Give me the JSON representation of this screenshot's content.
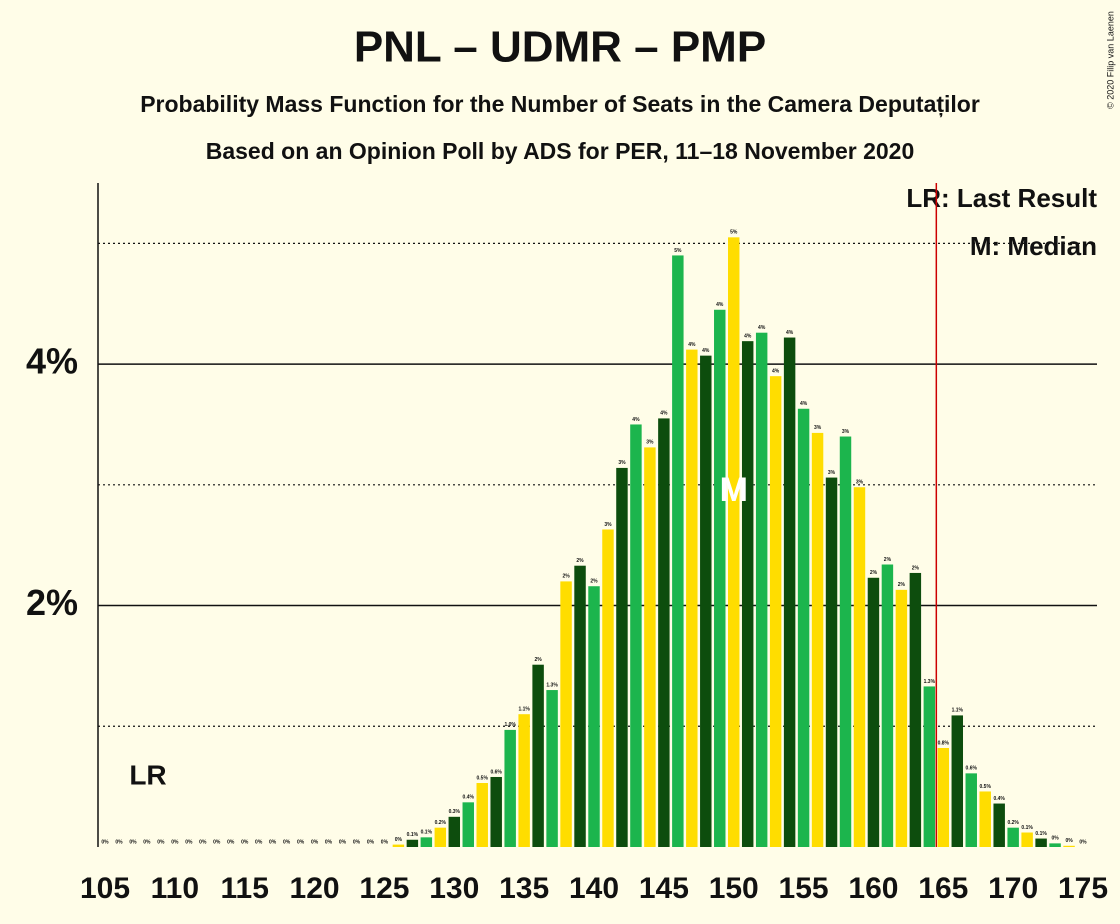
{
  "chart_data": {
    "type": "bar",
    "title": "PNL – UDMR – PMP",
    "subtitle": "Probability Mass Function for the Number of Seats in the Camera Deputaților",
    "subtitle2": "Based on an Opinion Poll by ADS for PER, 11–18 November 2020",
    "credit": "© 2020 Filip van Laenen",
    "legend": [
      "LR: Last Result",
      "M: Median"
    ],
    "last_result": {
      "x": 165,
      "label": "LR"
    },
    "median": {
      "x": 150,
      "label": "M"
    },
    "x": [
      105,
      106,
      107,
      108,
      109,
      110,
      111,
      112,
      113,
      114,
      115,
      116,
      117,
      118,
      119,
      120,
      121,
      122,
      123,
      124,
      125,
      126,
      127,
      128,
      129,
      130,
      131,
      132,
      133,
      134,
      135,
      136,
      137,
      138,
      139,
      140,
      141,
      142,
      143,
      144,
      145,
      146,
      147,
      148,
      149,
      150,
      151,
      152,
      153,
      154,
      155,
      156,
      157,
      158,
      159,
      160,
      161,
      162,
      163,
      164,
      165,
      166,
      167,
      168,
      169,
      170,
      171,
      172,
      173,
      174,
      175
    ],
    "values": [
      0,
      0,
      0,
      0,
      0,
      0,
      0,
      0,
      0,
      0,
      0,
      0,
      0,
      0,
      0,
      0,
      0,
      0,
      0,
      0,
      0,
      0.02,
      0.06,
      0.08,
      0.16,
      0.25,
      0.37,
      0.53,
      0.58,
      0.97,
      1.1,
      1.51,
      1.3,
      2.2,
      2.33,
      2.16,
      2.63,
      3.14,
      3.5,
      3.31,
      3.55,
      4.9,
      4.12,
      4.07,
      4.45,
      5.05,
      4.19,
      4.26,
      3.9,
      4.22,
      3.63,
      3.43,
      3.06,
      3.4,
      2.98,
      2.23,
      2.34,
      2.13,
      2.27,
      1.33,
      0.82,
      1.09,
      0.61,
      0.46,
      0.36,
      0.16,
      0.12,
      0.07,
      0.03,
      0.01,
      0
    ],
    "value_labels": [
      "0%",
      "0%",
      "0%",
      "0%",
      "0%",
      "0%",
      "0%",
      "0%",
      "0%",
      "0%",
      "0%",
      "0%",
      "0%",
      "0%",
      "0%",
      "0%",
      "0%",
      "0%",
      "0%",
      "0%",
      "0%",
      "0%",
      "0.1%",
      "0.1%",
      "0.2%",
      "0.3%",
      "0.4%",
      "0.5%",
      "0.6%",
      "1.0%",
      "1.1%",
      "2%",
      "1.3%",
      "2%",
      "2%",
      "2%",
      "3%",
      "3%",
      "4%",
      "3%",
      "4%",
      "5%",
      "4%",
      "4%",
      "4%",
      "5%",
      "4%",
      "4%",
      "4%",
      "4%",
      "4%",
      "3%",
      "3%",
      "3%",
      "3%",
      "2%",
      "2%",
      "2%",
      "2%",
      "1.3%",
      "0.8%",
      "1.1%",
      "0.6%",
      "0.5%",
      "0.4%",
      "0.2%",
      "0.1%",
      "0.1%",
      "0%",
      "0%",
      "0%"
    ],
    "colors": [
      "#ffdd00",
      "#0d4d0d",
      "#1cb54d"
    ],
    "line_color": "#cc0000",
    "xlim": [
      104.5,
      176
    ],
    "xticks": [
      105,
      110,
      115,
      120,
      125,
      130,
      135,
      140,
      145,
      150,
      155,
      160,
      165,
      170,
      175
    ],
    "ylim": [
      0,
      5.5
    ],
    "yticks": [
      {
        "value": 2,
        "label": "2%"
      },
      {
        "value": 4,
        "label": "4%"
      }
    ],
    "yticks_minor": [
      1,
      3,
      5
    ],
    "grid": true
  }
}
